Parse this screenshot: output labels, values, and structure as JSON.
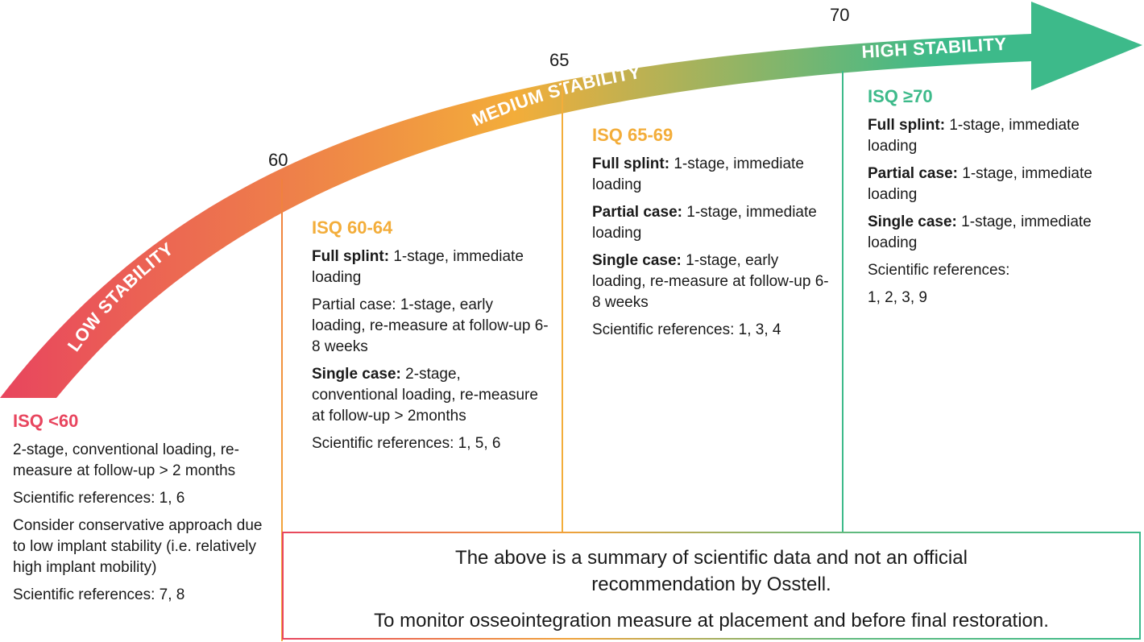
{
  "arrow": {
    "colors": {
      "low": "#e8455e",
      "mid": "#f3ad3a",
      "high": "#3dba8a"
    },
    "bands": {
      "low": "LOW STABILITY",
      "medium": "MEDIUM STABILITY",
      "high": "HIGH STABILITY"
    },
    "thresholds": [
      "60",
      "65",
      "70"
    ]
  },
  "columns": [
    {
      "heading": "ISQ <60",
      "color": "#e8455e",
      "paragraphs": [
        {
          "bold": "",
          "text": "2-stage, conventional loading, re-measure at follow-up > 2 months"
        },
        {
          "bold": "",
          "text": "Scientific references: 1, 6"
        },
        {
          "bold": "",
          "text": "Consider conservative approach due to low implant stability (i.e. relatively high implant mobility)"
        },
        {
          "bold": "",
          "text": "Scientific references: 7, 8"
        }
      ]
    },
    {
      "heading": "ISQ 60-64",
      "color": "#f3ad3a",
      "paragraphs": [
        {
          "bold": "Full splint:",
          "text": " 1-stage, immediate loading"
        },
        {
          "bold": "",
          "text": "Partial case: 1-stage, early loading, re-measure at follow-up 6-8 weeks"
        },
        {
          "bold": "Single case:",
          "text": " 2-stage, conventional loading, re-measure at follow-up > 2months"
        },
        {
          "bold": "",
          "text": "Scientific references: 1, 5, 6"
        }
      ]
    },
    {
      "heading": "ISQ 65-69",
      "color": "#f3ad3a",
      "paragraphs": [
        {
          "bold": "Full splint:",
          "text": " 1-stage, immediate loading"
        },
        {
          "bold": "Partial case:",
          "text": " 1-stage, immediate loading"
        },
        {
          "bold": "Single case:",
          "text": " 1-stage, early loading, re-measure at follow-up 6-8 weeks"
        },
        {
          "bold": "",
          "text": "Scientific references: 1, 3, 4"
        }
      ]
    },
    {
      "heading": "ISQ  ≥70",
      "color": "#3dba8a",
      "paragraphs": [
        {
          "bold": "Full splint:",
          "text": " 1-stage, immediate loading"
        },
        {
          "bold": "Partial case:",
          "text": " 1-stage, immediate loading"
        },
        {
          "bold": "Single case:",
          "text": " 1-stage, immediate loading"
        },
        {
          "bold": "",
          "text": "Scientific references:"
        },
        {
          "bold": "",
          "text": "1, 2, 3, 9"
        }
      ]
    }
  ],
  "disclaimer": {
    "line1": "The above is a summary of scientific data and not an official recommendation by Osstell.",
    "line2": "To monitor osseointegration measure at placement and before final restoration."
  }
}
